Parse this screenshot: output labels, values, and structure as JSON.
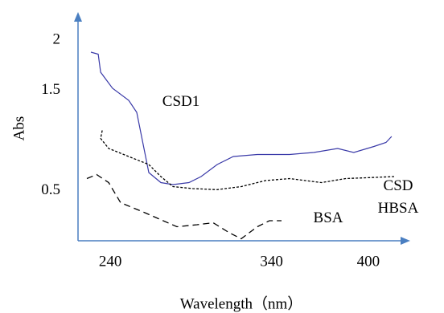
{
  "chart_data": {
    "type": "line",
    "x_label": "Wavelength（nm）",
    "y_label": "Abs",
    "xlim": [
      220,
      426
    ],
    "ylim": [
      0,
      2.28
    ],
    "xticks": [
      240,
      340,
      400
    ],
    "yticks": [
      2,
      1.5,
      0.5
    ],
    "grid": false,
    "axis_color": "#4a7fc1",
    "series": [
      {
        "name": "CSD1",
        "color": "#3a3aa8",
        "linestyle": "solid",
        "x": [
          228,
          232.5,
          234,
          241.4,
          251.4,
          256.4,
          260.4,
          263.9,
          271.4,
          278.9,
          288.8,
          296.3,
          306.3,
          316.3,
          331.2,
          351.2,
          366.1,
          381,
          391,
          403.5,
          411,
          414.5
        ],
        "values": [
          1.88,
          1.86,
          1.68,
          1.52,
          1.4,
          1.28,
          0.96,
          0.68,
          0.58,
          0.56,
          0.58,
          0.64,
          0.76,
          0.84,
          0.86,
          0.86,
          0.88,
          0.92,
          0.88,
          0.94,
          0.98,
          1.04
        ]
      },
      {
        "name": "CSD HBSA",
        "color": "#000000",
        "linestyle": "dotted",
        "x": [
          235,
          234,
          239,
          251.4,
          263.9,
          271.4,
          278.9,
          291.3,
          306.3,
          321.2,
          336.2,
          351.2,
          371,
          386,
          401,
          416
        ],
        "values": [
          1.1,
          1.02,
          0.92,
          0.84,
          0.76,
          0.64,
          0.54,
          0.52,
          0.51,
          0.54,
          0.6,
          0.62,
          0.58,
          0.62,
          0.63,
          0.64
        ]
      },
      {
        "name": "BSA",
        "color": "#000000",
        "linestyle": "dashed",
        "x": [
          225.5,
          231.5,
          239,
          246.4,
          261.4,
          281.3,
          293.8,
          303.8,
          313.8,
          321.2,
          331.2,
          338.7,
          346.2
        ],
        "values": [
          0.62,
          0.66,
          0.58,
          0.38,
          0.28,
          0.14,
          0.16,
          0.18,
          0.08,
          0.02,
          0.14,
          0.2,
          0.2
        ]
      }
    ]
  }
}
